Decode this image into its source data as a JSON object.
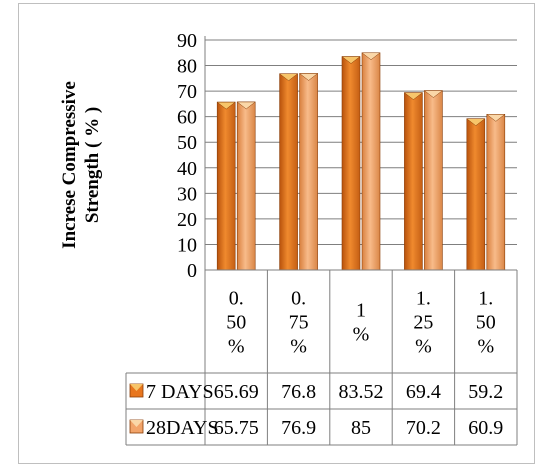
{
  "chart_data": {
    "type": "bar",
    "title": "",
    "xlabel": "",
    "ylabel": "Increse Compressive Strength ( % )",
    "ylim": [
      0,
      90
    ],
    "yticks": [
      "0",
      "10",
      "20",
      "30",
      "40",
      "50",
      "60",
      "70",
      "80",
      "90"
    ],
    "grid": true,
    "legend": "data-table",
    "categories": [
      "0.50%",
      "0.75%",
      "1%",
      "1.25%",
      "1.50%"
    ],
    "category_lines": [
      [
        "0.",
        "50",
        "%"
      ],
      [
        "0.",
        "75",
        "%"
      ],
      [
        "1",
        "%"
      ],
      [
        "1.",
        "25",
        "%"
      ],
      [
        "1.",
        "50",
        "%"
      ]
    ],
    "series": [
      {
        "name": "7 DAYS",
        "values": [
          65.69,
          76.8,
          83.52,
          69.4,
          59.2
        ],
        "labels": [
          "65.69",
          "76.8",
          "83.52",
          "69.4",
          "59.2"
        ],
        "color": "#E8761E"
      },
      {
        "name": "28DAYS",
        "values": [
          65.75,
          76.9,
          85,
          70.2,
          60.9
        ],
        "labels": [
          "65.75",
          "76.9",
          "85",
          "70.2",
          "60.9"
        ],
        "color": "#F2A46A"
      }
    ]
  }
}
